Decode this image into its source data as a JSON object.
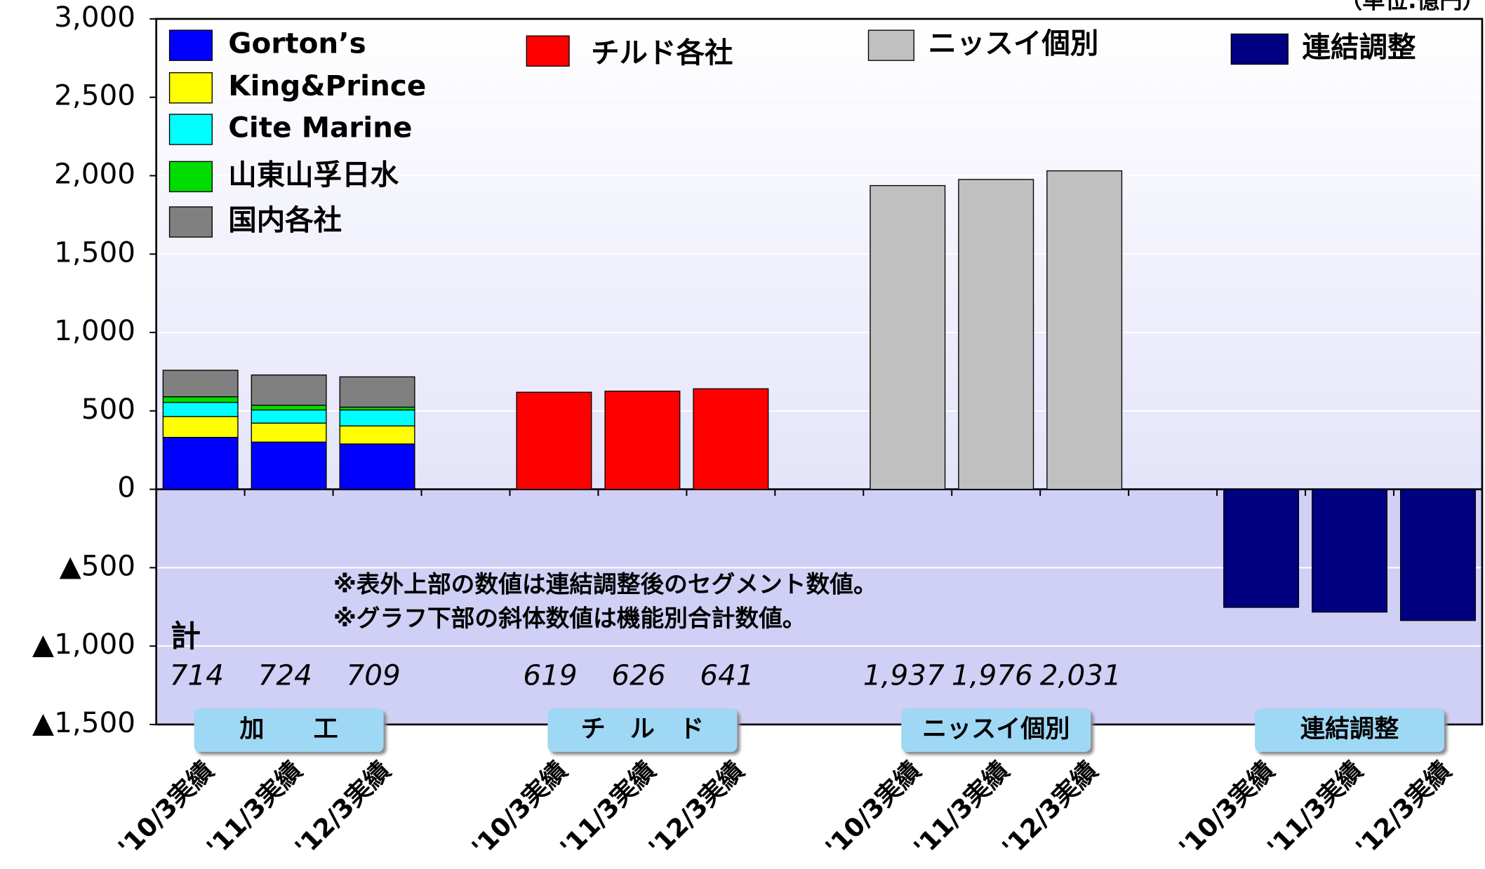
{
  "chart_data": {
    "type": "bar",
    "stacked": true,
    "unit_label": "（単位:億円）",
    "categories": [
      "'10/3実績",
      "'11/3実績",
      "'12/3実績",
      null,
      "'10/3実績",
      "'11/3実績",
      "'12/3実績",
      null,
      "'10/3実績",
      "'11/3実績",
      "'12/3実績",
      null,
      "'10/3実績",
      "'11/3実績",
      "'12/3実績"
    ],
    "series": [
      {
        "name": "Gorton’s",
        "color": "#0000ff",
        "values": [
          331,
          301,
          289,
          null,
          null,
          null,
          null,
          null,
          null,
          null,
          null,
          null,
          null,
          null,
          null
        ]
      },
      {
        "name": "King&Prince",
        "color": "#ffff00",
        "values": [
          133,
          121,
          115,
          null,
          null,
          null,
          null,
          null,
          null,
          null,
          null,
          null,
          null,
          null,
          null
        ]
      },
      {
        "name": "Cite Marine",
        "color": "#00ffff",
        "values": [
          90,
          84,
          102,
          null,
          null,
          null,
          null,
          null,
          null,
          null,
          null,
          null,
          null,
          null,
          null
        ]
      },
      {
        "name": "山東山孚日水",
        "color": "#00dd00",
        "values": [
          36,
          30,
          18,
          null,
          null,
          null,
          null,
          null,
          null,
          null,
          null,
          null,
          null,
          null,
          null
        ]
      },
      {
        "name": "国内各社",
        "color": "#808080",
        "values": [
          169,
          193,
          193,
          null,
          null,
          null,
          null,
          null,
          null,
          null,
          null,
          null,
          null,
          null,
          null
        ]
      },
      {
        "name": "チルド各社",
        "color": "#ff0000",
        "values": [
          null,
          null,
          null,
          null,
          619,
          626,
          641,
          null,
          null,
          null,
          null,
          null,
          null,
          null,
          null
        ]
      },
      {
        "name": "ニッスイ個別",
        "color": "#c0c0c0",
        "values": [
          null,
          null,
          null,
          null,
          null,
          null,
          null,
          null,
          1937,
          1976,
          2031,
          null,
          null,
          null,
          null
        ]
      },
      {
        "name": "連結調整",
        "color": "#000080",
        "values": [
          null,
          null,
          null,
          null,
          null,
          null,
          null,
          null,
          null,
          null,
          null,
          null,
          -753,
          -783,
          -837
        ]
      }
    ],
    "totals": {
      "label": "計",
      "values": [
        714,
        724,
        709,
        null,
        619,
        626,
        641,
        null,
        1937,
        1976,
        2031,
        null,
        null,
        null,
        null
      ],
      "value_labels": [
        "714",
        "724",
        "709",
        null,
        "619",
        "626",
        "641",
        null,
        "1,937",
        "1,976",
        "2,031",
        null,
        null,
        null,
        null
      ]
    },
    "groups": [
      "加　　工",
      "チ　ル　ド",
      "ニッスイ個別",
      "連結調整"
    ],
    "notes": [
      "※表外上部の数値は連結調整後のセグメント数値。",
      "※グラフ下部の斜体数値は機能別合計数値。"
    ],
    "ylim": [
      -1500,
      3000
    ],
    "yticks": [
      {
        "value": -1500,
        "label": "▲1,500"
      },
      {
        "value": -1000,
        "label": "▲1,000"
      },
      {
        "value": -500,
        "label": "▲500"
      },
      0,
      500,
      {
        "value": 1000,
        "label": "1,000"
      },
      {
        "value": 1500,
        "label": "1,500"
      },
      {
        "value": 2000,
        "label": "2,000"
      },
      {
        "value": 2500,
        "label": "2,500"
      },
      {
        "value": 3000,
        "label": "3,000"
      }
    ],
    "grid": true
  }
}
